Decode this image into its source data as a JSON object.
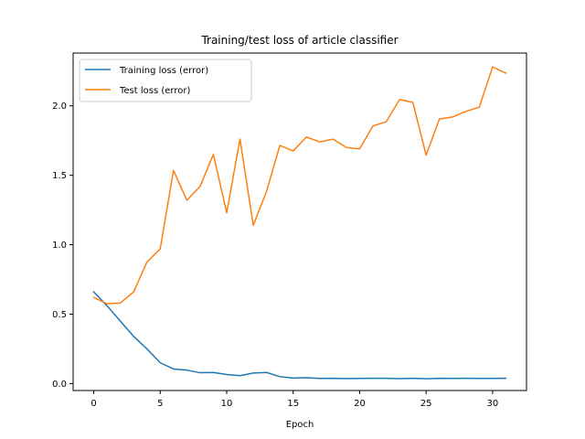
{
  "chart_data": {
    "type": "line",
    "title": "Training/test loss of article classifier",
    "xlabel": "Epoch",
    "ylabel": "",
    "xlim": [
      -1.55,
      32.55
    ],
    "ylim": [
      -0.05,
      2.38
    ],
    "xticks": [
      0,
      5,
      10,
      15,
      20,
      25,
      30
    ],
    "yticks": [
      0.0,
      0.5,
      1.0,
      1.5,
      2.0
    ],
    "ytick_labels": [
      "0.0",
      "0.5",
      "1.0",
      "1.5",
      "2.0"
    ],
    "x": [
      0,
      1,
      2,
      3,
      4,
      5,
      6,
      7,
      8,
      9,
      10,
      11,
      12,
      13,
      14,
      15,
      16,
      17,
      18,
      19,
      20,
      21,
      22,
      23,
      24,
      25,
      26,
      27,
      28,
      29,
      30,
      31
    ],
    "series": [
      {
        "name": "Training loss (error)",
        "color": "#1f77b4",
        "values": [
          0.66,
          0.56,
          0.45,
          0.34,
          0.25,
          0.15,
          0.105,
          0.097,
          0.078,
          0.08,
          0.065,
          0.057,
          0.076,
          0.08,
          0.05,
          0.04,
          0.042,
          0.037,
          0.038,
          0.036,
          0.037,
          0.038,
          0.038,
          0.036,
          0.038,
          0.035,
          0.038,
          0.037,
          0.038,
          0.037,
          0.037,
          0.038
        ]
      },
      {
        "name": "Test loss (error)",
        "color": "#ff7f0e",
        "values": [
          0.62,
          0.575,
          0.58,
          0.66,
          0.875,
          0.97,
          1.535,
          1.32,
          1.42,
          1.65,
          1.23,
          1.76,
          1.14,
          1.385,
          1.715,
          1.675,
          1.775,
          1.74,
          1.76,
          1.7,
          1.69,
          1.855,
          1.885,
          2.045,
          2.025,
          1.645,
          1.905,
          1.92,
          1.96,
          1.99,
          2.28,
          2.235
        ]
      }
    ],
    "legend_position": "top-left",
    "grid": false
  }
}
